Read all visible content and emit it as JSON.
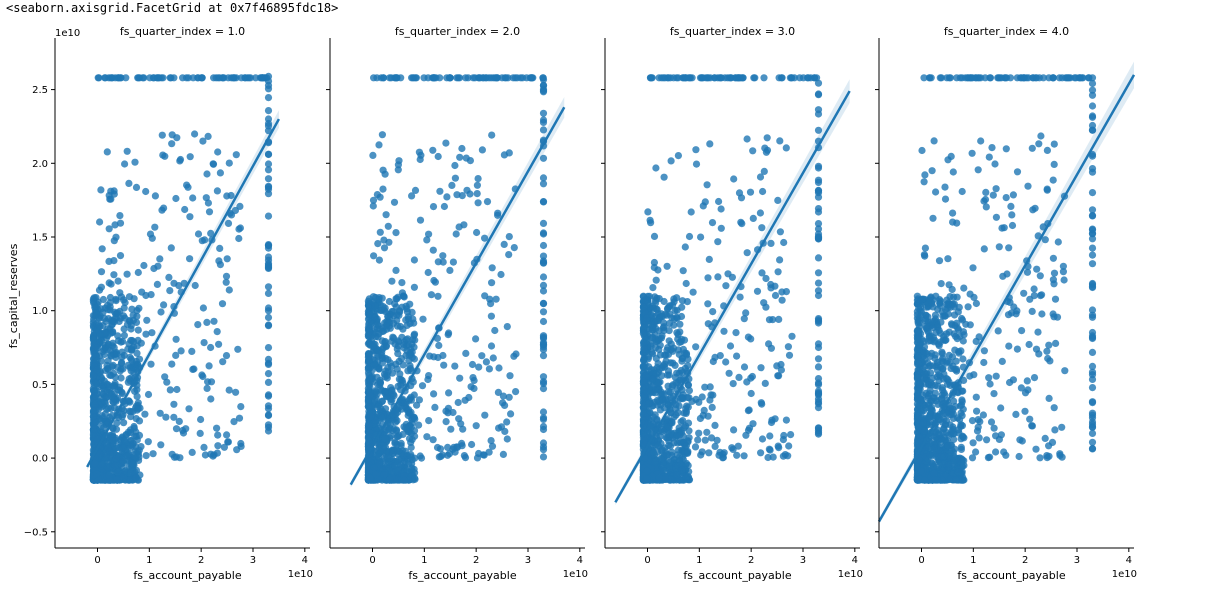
{
  "output_repr": "<seaborn.axisgrid.FacetGrid at 0x7f46895fdc18>",
  "chart_data": {
    "type": "scatter",
    "grid": false,
    "share_y": true,
    "xlabel": "fs_account_payable",
    "ylabel": "fs_capital_reserves",
    "x_offset_text": "1e10",
    "y_offset_text": "1e10",
    "xlim": [
      -0.82,
      4.1
    ],
    "ylim": [
      -0.61,
      2.85
    ],
    "xticks": [
      0,
      1,
      2,
      3,
      4
    ],
    "xticklabels": [
      "0",
      "1",
      "2",
      "3",
      "4"
    ],
    "yticks": [
      -0.5,
      0.0,
      0.5,
      1.0,
      1.5,
      2.0,
      2.5
    ],
    "yticklabels": [
      "−0.5",
      "0.0",
      "0.5",
      "1.0",
      "1.5",
      "2.0",
      "2.5"
    ],
    "color": "#1f77b4",
    "panels": [
      {
        "title": "fs_quarter_index = 1.0",
        "line": {
          "x": [
            -0.2,
            3.5
          ],
          "y": [
            -0.06,
            2.3
          ]
        },
        "ci_band_end_halfwidth": 0.06
      },
      {
        "title": "fs_quarter_index = 2.0",
        "line": {
          "x": [
            -0.42,
            3.7
          ],
          "y": [
            -0.18,
            2.38
          ]
        },
        "ci_band_end_halfwidth": 0.07
      },
      {
        "title": "fs_quarter_index = 3.0",
        "line": {
          "x": [
            -0.62,
            3.9
          ],
          "y": [
            -0.3,
            2.49
          ]
        },
        "ci_band_end_halfwidth": 0.08
      },
      {
        "title": "fs_quarter_index = 4.0",
        "line": {
          "x": [
            -0.82,
            4.1
          ],
          "y": [
            -0.43,
            2.6
          ]
        },
        "ci_band_end_halfwidth": 0.09
      }
    ],
    "cap_value_y": 2.58,
    "cap_value_x": 3.3
  }
}
